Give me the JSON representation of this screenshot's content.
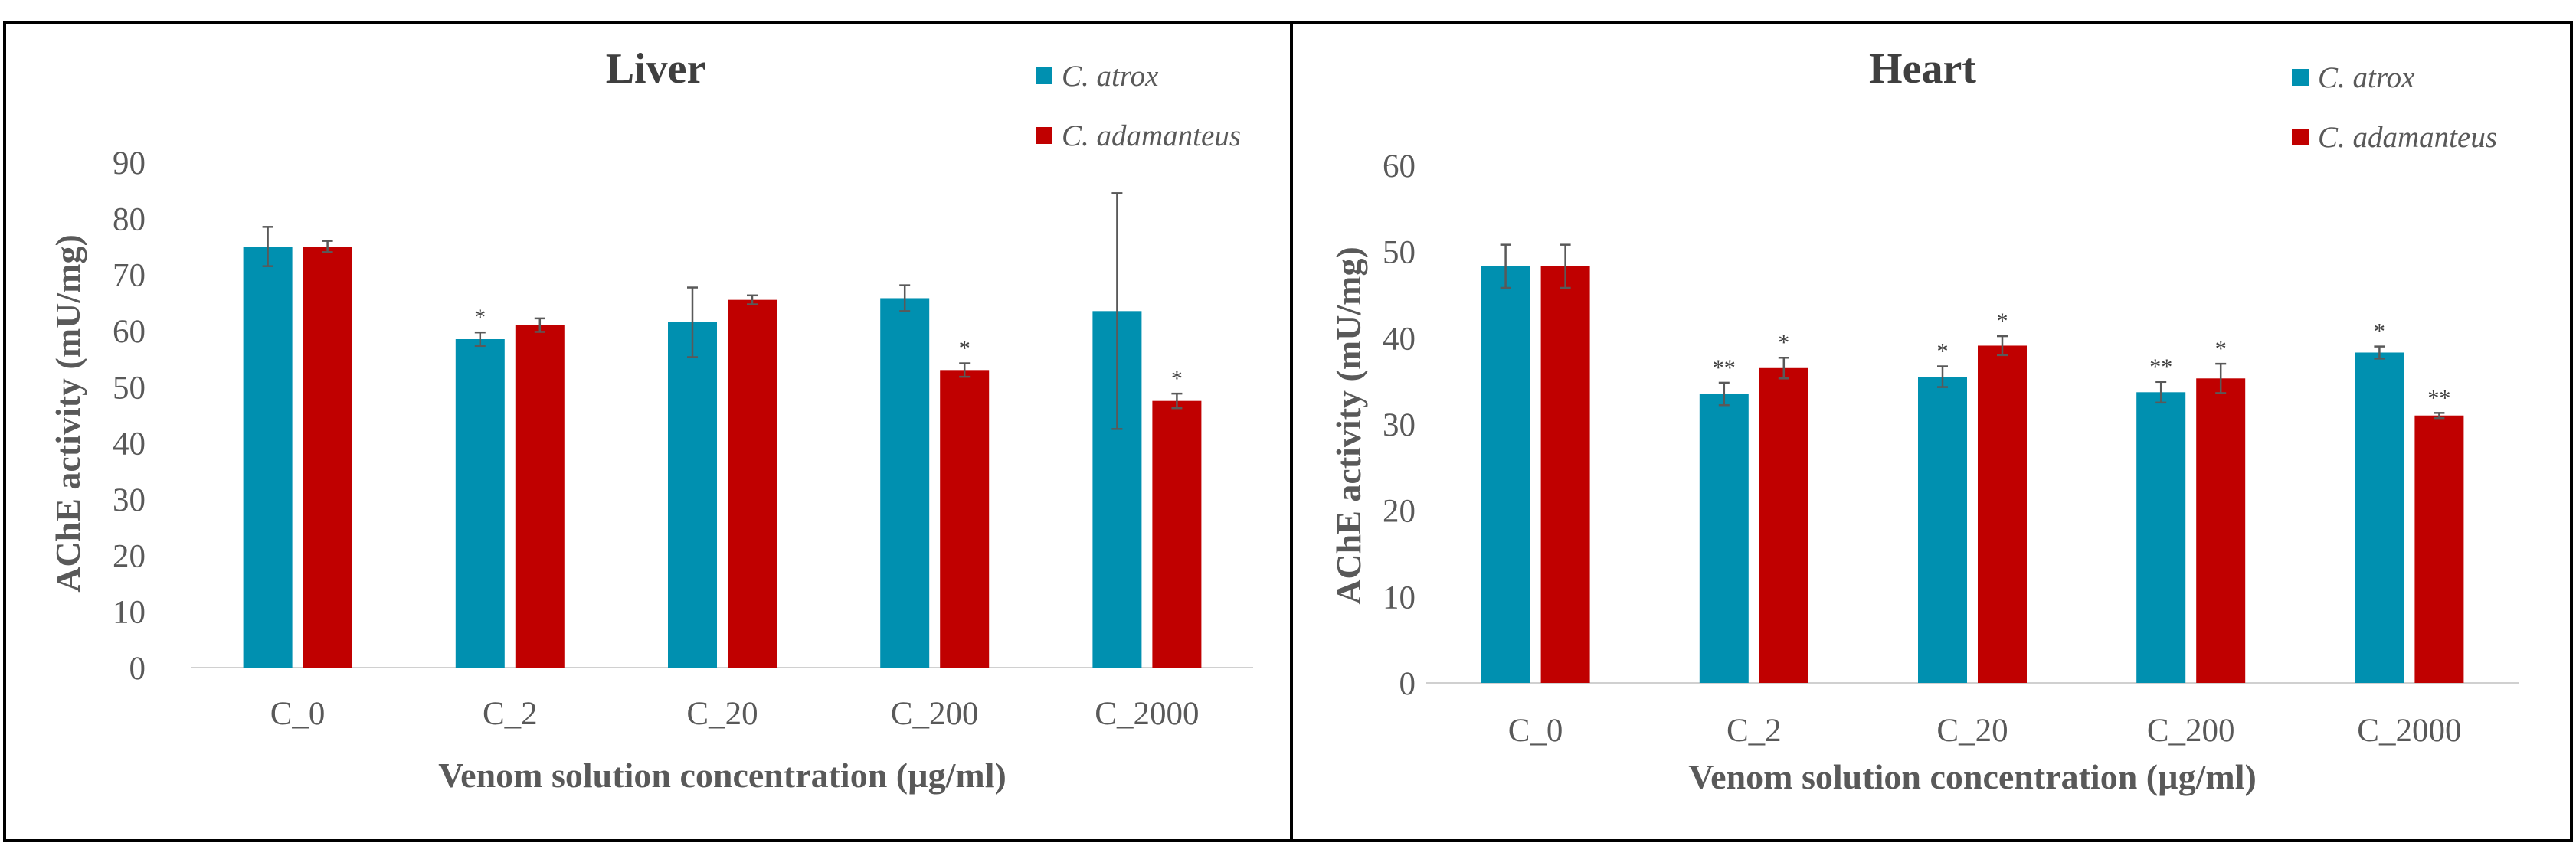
{
  "chart_data": [
    {
      "type": "bar",
      "title": "Liver",
      "xlabel": "Venom solution concentration (µg/ml)",
      "ylabel": "AChE activity (mU/mg)",
      "ylim": [
        0,
        90
      ],
      "yticks": [
        0,
        10,
        20,
        30,
        40,
        50,
        60,
        70,
        80,
        90
      ],
      "categories": [
        "C_0",
        "C_2",
        "C_20",
        "C_200",
        "C_2000"
      ],
      "series": [
        {
          "name": "C. atrox",
          "color": "#0090B0",
          "values": [
            75,
            58.5,
            61.5,
            65.8,
            63.5
          ],
          "errors": [
            3.5,
            1.2,
            6.2,
            2.3,
            21
          ],
          "labels": [
            "",
            "*",
            "",
            "",
            ""
          ]
        },
        {
          "name": "C. adamanteus",
          "color": "#C00000",
          "values": [
            75,
            61,
            65.5,
            53,
            47.5
          ],
          "errors": [
            1,
            1.2,
            0.8,
            1.2,
            1.3
          ],
          "labels": [
            "",
            "",
            "",
            "*",
            "*"
          ]
        }
      ]
    },
    {
      "type": "bar",
      "title": "Heart",
      "xlabel": "Venom solution concentration (µg/ml)",
      "ylabel": "AChE activity (mU/mg)",
      "ylim": [
        0,
        60
      ],
      "yticks": [
        0,
        10,
        20,
        30,
        40,
        50,
        60
      ],
      "categories": [
        "C_0",
        "C_2",
        "C_20",
        "C_200",
        "C_2000"
      ],
      "series": [
        {
          "name": "C. atrox",
          "color": "#0090B0",
          "values": [
            48.3,
            33.5,
            35.5,
            33.7,
            38.3
          ],
          "errors": [
            2.5,
            1.3,
            1.2,
            1.2,
            0.7
          ],
          "labels": [
            "",
            "**",
            "*",
            "**",
            "*"
          ]
        },
        {
          "name": "C. adamanteus",
          "color": "#C00000",
          "values": [
            48.3,
            36.5,
            39.1,
            35.3,
            31
          ],
          "errors": [
            2.5,
            1.2,
            1.1,
            1.7,
            0.3
          ],
          "labels": [
            "",
            "*",
            "*",
            "*",
            "**"
          ]
        }
      ]
    }
  ]
}
